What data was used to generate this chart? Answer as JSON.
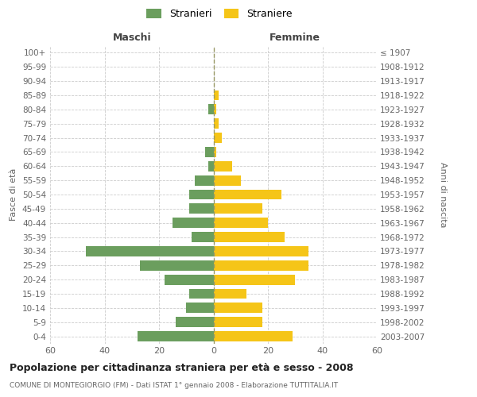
{
  "age_groups": [
    "100+",
    "95-99",
    "90-94",
    "85-89",
    "80-84",
    "75-79",
    "70-74",
    "65-69",
    "60-64",
    "55-59",
    "50-54",
    "45-49",
    "40-44",
    "35-39",
    "30-34",
    "25-29",
    "20-24",
    "15-19",
    "10-14",
    "5-9",
    "0-4"
  ],
  "birth_years": [
    "≤ 1907",
    "1908-1912",
    "1913-1917",
    "1918-1922",
    "1923-1927",
    "1928-1932",
    "1933-1937",
    "1938-1942",
    "1943-1947",
    "1948-1952",
    "1953-1957",
    "1958-1962",
    "1963-1967",
    "1968-1972",
    "1973-1977",
    "1978-1982",
    "1983-1987",
    "1988-1992",
    "1993-1997",
    "1998-2002",
    "2003-2007"
  ],
  "maschi": [
    0,
    0,
    0,
    0,
    2,
    0,
    0,
    3,
    2,
    7,
    9,
    9,
    15,
    8,
    47,
    27,
    18,
    9,
    10,
    14,
    28
  ],
  "femmine": [
    0,
    0,
    0,
    2,
    1,
    2,
    3,
    1,
    7,
    10,
    25,
    18,
    20,
    26,
    35,
    35,
    30,
    12,
    18,
    18,
    29
  ],
  "maschi_color": "#6b9e5e",
  "femmine_color": "#f5c518",
  "background_color": "#ffffff",
  "grid_color": "#cccccc",
  "title": "Popolazione per cittadinanza straniera per età e sesso - 2008",
  "subtitle": "COMUNE DI MONTEGIORGIO (FM) - Dati ISTAT 1° gennaio 2008 - Elaborazione TUTTITALIA.IT",
  "ylabel_left": "Fasce di età",
  "ylabel_right": "Anni di nascita",
  "maschi_header": "Maschi",
  "femmine_header": "Femmine",
  "legend_stranieri": "Stranieri",
  "legend_straniere": "Straniere",
  "xlim": 60,
  "dashed_line_color": "#999966"
}
